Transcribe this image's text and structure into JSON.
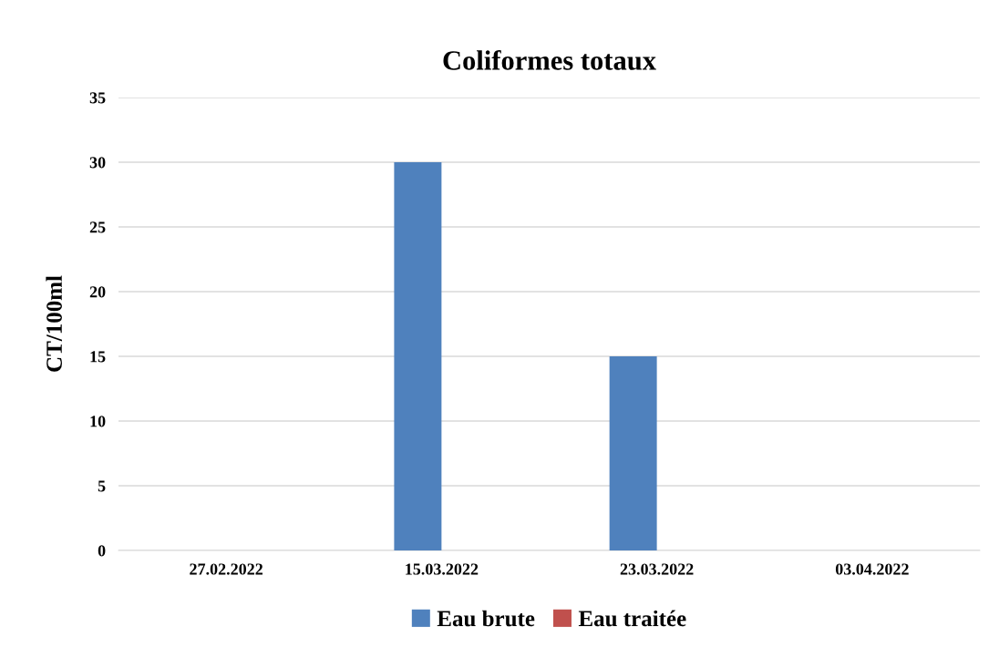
{
  "chart_data": {
    "type": "bar",
    "title": "Coliformes totaux",
    "ylabel": "CT/100ml",
    "categories": [
      "27.02.2022",
      "15.03.2022",
      "23.03.2022",
      "03.04.2022"
    ],
    "series": [
      {
        "name": "Eau brute",
        "color": "#4f81bd",
        "values": [
          0,
          30,
          15,
          0
        ]
      },
      {
        "name": "Eau traitée",
        "color": "#c0504d",
        "values": [
          0,
          0,
          0,
          0
        ]
      }
    ],
    "ylim": [
      0,
      35
    ],
    "yticks": [
      0,
      5,
      10,
      15,
      20,
      25,
      30,
      35
    ],
    "grid": "y",
    "legend": "bottom"
  }
}
